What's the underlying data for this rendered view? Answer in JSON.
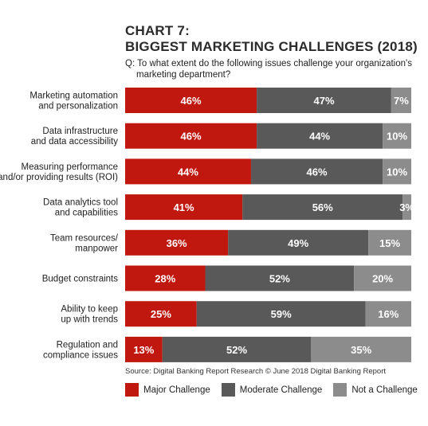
{
  "title_line1": "CHART 7:",
  "title_line2": "BIGGEST MARKETING CHALLENGES (2018)",
  "question_line1": "Q: To what extent do the following issues challenge your organization's",
  "question_line2": "marketing department?",
  "source": "Source: Digital Banking Report Research © June 2018 Digital Banking Report",
  "colors": {
    "major": "#c0180f",
    "moderate": "#595959",
    "not": "#8c8c8c"
  },
  "chart_data": {
    "type": "bar",
    "orientation": "horizontal",
    "stacked": true,
    "categories": [
      [
        "Marketing automation",
        "and personalization"
      ],
      [
        "Data infrastructure",
        "and data accessibility"
      ],
      [
        "Measuring performance",
        "and/or providing results (ROI)"
      ],
      [
        "Data analytics tool",
        "and capabilities"
      ],
      [
        "Team resources/",
        "manpower"
      ],
      [
        "Budget constraints"
      ],
      [
        "Ability to keep",
        "up with trends"
      ],
      [
        "Regulation and",
        "compliance issues"
      ]
    ],
    "series": [
      {
        "name": "Major Challenge",
        "values": [
          46,
          46,
          44,
          41,
          36,
          28,
          25,
          13
        ]
      },
      {
        "name": "Moderate Challenge",
        "values": [
          47,
          44,
          46,
          56,
          49,
          52,
          59,
          52
        ]
      },
      {
        "name": "Not a Challenge",
        "values": [
          7,
          10,
          10,
          3,
          15,
          20,
          16,
          35
        ]
      }
    ],
    "value_suffix": "%",
    "xlim": [
      0,
      100
    ]
  }
}
